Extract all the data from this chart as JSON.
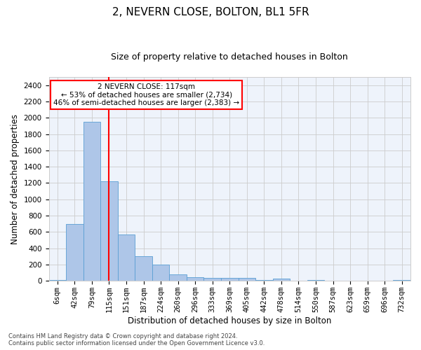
{
  "title": "2, NEVERN CLOSE, BOLTON, BL1 5FR",
  "subtitle": "Size of property relative to detached houses in Bolton",
  "xlabel": "Distribution of detached houses by size in Bolton",
  "ylabel": "Number of detached properties",
  "bar_labels": [
    "6sqm",
    "42sqm",
    "79sqm",
    "115sqm",
    "151sqm",
    "187sqm",
    "224sqm",
    "260sqm",
    "296sqm",
    "333sqm",
    "369sqm",
    "405sqm",
    "442sqm",
    "478sqm",
    "514sqm",
    "550sqm",
    "587sqm",
    "623sqm",
    "659sqm",
    "696sqm",
    "732sqm"
  ],
  "bar_values": [
    15,
    700,
    1950,
    1220,
    570,
    305,
    200,
    80,
    45,
    35,
    35,
    35,
    15,
    25,
    5,
    15,
    5,
    5,
    5,
    5,
    15
  ],
  "bar_color": "#aec6e8",
  "bar_edgecolor": "#5a9fd4",
  "vline_x": 3,
  "vline_color": "red",
  "annotation_text": "2 NEVERN CLOSE: 117sqm\n← 53% of detached houses are smaller (2,734)\n46% of semi-detached houses are larger (2,383) →",
  "annotation_box_color": "white",
  "annotation_box_edgecolor": "red",
  "ylim": [
    0,
    2500
  ],
  "yticks": [
    0,
    200,
    400,
    600,
    800,
    1000,
    1200,
    1400,
    1600,
    1800,
    2000,
    2200,
    2400
  ],
  "grid_color": "#cccccc",
  "background_color": "#eef3fb",
  "footer_line1": "Contains HM Land Registry data © Crown copyright and database right 2024.",
  "footer_line2": "Contains public sector information licensed under the Open Government Licence v3.0.",
  "title_fontsize": 11,
  "subtitle_fontsize": 9,
  "axis_label_fontsize": 8.5,
  "tick_fontsize": 7.5,
  "annotation_fontsize": 7.5,
  "footer_fontsize": 6
}
